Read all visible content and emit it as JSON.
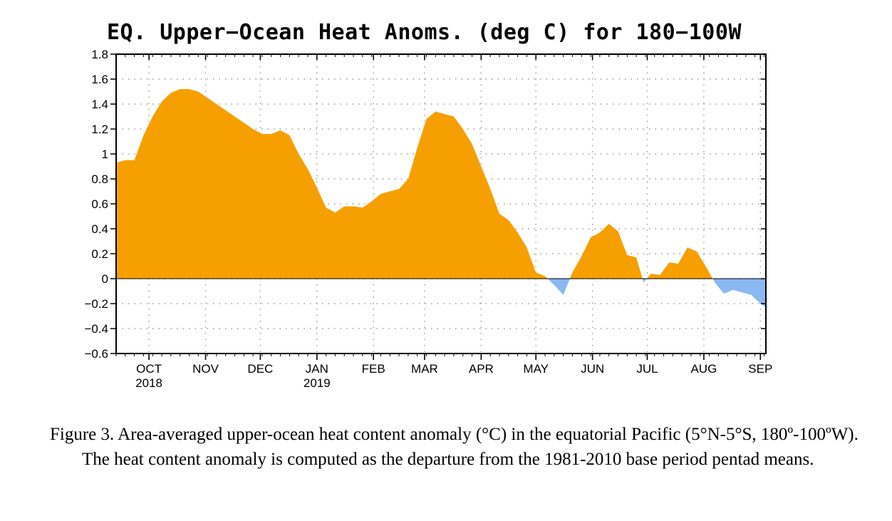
{
  "chart_data": {
    "type": "area",
    "title": "EQ. Upper−Ocean Heat Anoms. (deg C) for 180−100W",
    "ylim": [
      -0.6,
      1.8
    ],
    "yticks": [
      {
        "value": 1.8,
        "label": "1.8"
      },
      {
        "value": 1.6,
        "label": "1.6"
      },
      {
        "value": 1.4,
        "label": "1.4"
      },
      {
        "value": 1.2,
        "label": "1.2"
      },
      {
        "value": 1.0,
        "label": "1"
      },
      {
        "value": 0.8,
        "label": "0.8"
      },
      {
        "value": 0.6,
        "label": "0.6"
      },
      {
        "value": 0.4,
        "label": "0.4"
      },
      {
        "value": 0.2,
        "label": "0.2"
      },
      {
        "value": 0.0,
        "label": "0"
      },
      {
        "value": -0.2,
        "label": "−0.2"
      },
      {
        "value": -0.4,
        "label": "−0.4"
      },
      {
        "value": -0.6,
        "label": "−0.6"
      }
    ],
    "xlim": [
      "2018-09-13",
      "2019-09-04"
    ],
    "x_month_ticks": [
      {
        "date": "2018-10-01",
        "label": "OCT",
        "year": "2018"
      },
      {
        "date": "2018-11-01",
        "label": "NOV",
        "year": ""
      },
      {
        "date": "2018-12-01",
        "label": "DEC",
        "year": ""
      },
      {
        "date": "2019-01-01",
        "label": "JAN",
        "year": "2019"
      },
      {
        "date": "2019-02-01",
        "label": "FEB",
        "year": ""
      },
      {
        "date": "2019-03-01",
        "label": "MAR",
        "year": ""
      },
      {
        "date": "2019-04-01",
        "label": "APR",
        "year": ""
      },
      {
        "date": "2019-05-01",
        "label": "MAY",
        "year": ""
      },
      {
        "date": "2019-06-01",
        "label": "JUN",
        "year": ""
      },
      {
        "date": "2019-07-01",
        "label": "JUL",
        "year": ""
      },
      {
        "date": "2019-08-01",
        "label": "AUG",
        "year": ""
      },
      {
        "date": "2019-09-01",
        "label": "SEP",
        "year": ""
      }
    ],
    "grid": true,
    "positive_color": "#f5a000",
    "negative_color": "#8ab8f0",
    "points": [
      {
        "x": "2018-09-13",
        "y": 0.93
      },
      {
        "x": "2018-09-18",
        "y": 0.95
      },
      {
        "x": "2018-09-23",
        "y": 0.95
      },
      {
        "x": "2018-09-28",
        "y": 1.15
      },
      {
        "x": "2018-10-03",
        "y": 1.3
      },
      {
        "x": "2018-10-08",
        "y": 1.42
      },
      {
        "x": "2018-10-13",
        "y": 1.49
      },
      {
        "x": "2018-10-18",
        "y": 1.52
      },
      {
        "x": "2018-10-23",
        "y": 1.52
      },
      {
        "x": "2018-10-28",
        "y": 1.5
      },
      {
        "x": "2018-11-02",
        "y": 1.45
      },
      {
        "x": "2018-11-07",
        "y": 1.4
      },
      {
        "x": "2018-11-12",
        "y": 1.35
      },
      {
        "x": "2018-11-17",
        "y": 1.3
      },
      {
        "x": "2018-11-22",
        "y": 1.25
      },
      {
        "x": "2018-11-27",
        "y": 1.2
      },
      {
        "x": "2018-12-02",
        "y": 1.16
      },
      {
        "x": "2018-12-07",
        "y": 1.16
      },
      {
        "x": "2018-12-12",
        "y": 1.19
      },
      {
        "x": "2018-12-17",
        "y": 1.15
      },
      {
        "x": "2018-12-22",
        "y": 1.0
      },
      {
        "x": "2018-12-27",
        "y": 0.88
      },
      {
        "x": "2019-01-01",
        "y": 0.73
      },
      {
        "x": "2019-01-06",
        "y": 0.57
      },
      {
        "x": "2019-01-11",
        "y": 0.53
      },
      {
        "x": "2019-01-16",
        "y": 0.58
      },
      {
        "x": "2019-01-21",
        "y": 0.58
      },
      {
        "x": "2019-01-26",
        "y": 0.57
      },
      {
        "x": "2019-01-31",
        "y": 0.62
      },
      {
        "x": "2019-02-05",
        "y": 0.68
      },
      {
        "x": "2019-02-10",
        "y": 0.7
      },
      {
        "x": "2019-02-15",
        "y": 0.72
      },
      {
        "x": "2019-02-20",
        "y": 0.8
      },
      {
        "x": "2019-02-25",
        "y": 1.05
      },
      {
        "x": "2019-03-02",
        "y": 1.28
      },
      {
        "x": "2019-03-07",
        "y": 1.34
      },
      {
        "x": "2019-03-12",
        "y": 1.32
      },
      {
        "x": "2019-03-17",
        "y": 1.3
      },
      {
        "x": "2019-03-22",
        "y": 1.2
      },
      {
        "x": "2019-03-27",
        "y": 1.08
      },
      {
        "x": "2019-04-01",
        "y": 0.9
      },
      {
        "x": "2019-04-06",
        "y": 0.72
      },
      {
        "x": "2019-04-11",
        "y": 0.52
      },
      {
        "x": "2019-04-16",
        "y": 0.47
      },
      {
        "x": "2019-04-21",
        "y": 0.37
      },
      {
        "x": "2019-04-26",
        "y": 0.25
      },
      {
        "x": "2019-05-01",
        "y": 0.05
      },
      {
        "x": "2019-05-06",
        "y": 0.02
      },
      {
        "x": "2019-05-11",
        "y": -0.05
      },
      {
        "x": "2019-05-16",
        "y": -0.13
      },
      {
        "x": "2019-05-21",
        "y": 0.05
      },
      {
        "x": "2019-05-26",
        "y": 0.18
      },
      {
        "x": "2019-05-31",
        "y": 0.33
      },
      {
        "x": "2019-06-05",
        "y": 0.37
      },
      {
        "x": "2019-06-10",
        "y": 0.44
      },
      {
        "x": "2019-06-15",
        "y": 0.38
      },
      {
        "x": "2019-06-20",
        "y": 0.19
      },
      {
        "x": "2019-06-25",
        "y": 0.17
      },
      {
        "x": "2019-06-29",
        "y": -0.03
      },
      {
        "x": "2019-07-03",
        "y": 0.04
      },
      {
        "x": "2019-07-08",
        "y": 0.03
      },
      {
        "x": "2019-07-13",
        "y": 0.13
      },
      {
        "x": "2019-07-18",
        "y": 0.12
      },
      {
        "x": "2019-07-23",
        "y": 0.25
      },
      {
        "x": "2019-07-28",
        "y": 0.22
      },
      {
        "x": "2019-08-02",
        "y": 0.1
      },
      {
        "x": "2019-08-07",
        "y": -0.03
      },
      {
        "x": "2019-08-12",
        "y": -0.12
      },
      {
        "x": "2019-08-17",
        "y": -0.09
      },
      {
        "x": "2019-08-22",
        "y": -0.11
      },
      {
        "x": "2019-08-27",
        "y": -0.13
      },
      {
        "x": "2019-09-01",
        "y": -0.2
      },
      {
        "x": "2019-09-04",
        "y": -0.23
      }
    ]
  },
  "caption": {
    "text": "Figure 3. Area-averaged upper-ocean heat content anomaly (°C) in the equatorial Pacific (5°N-5°S, 180º-100ºW). The heat content anomaly is computed as the departure from the 1981-2010 base period pentad means."
  }
}
